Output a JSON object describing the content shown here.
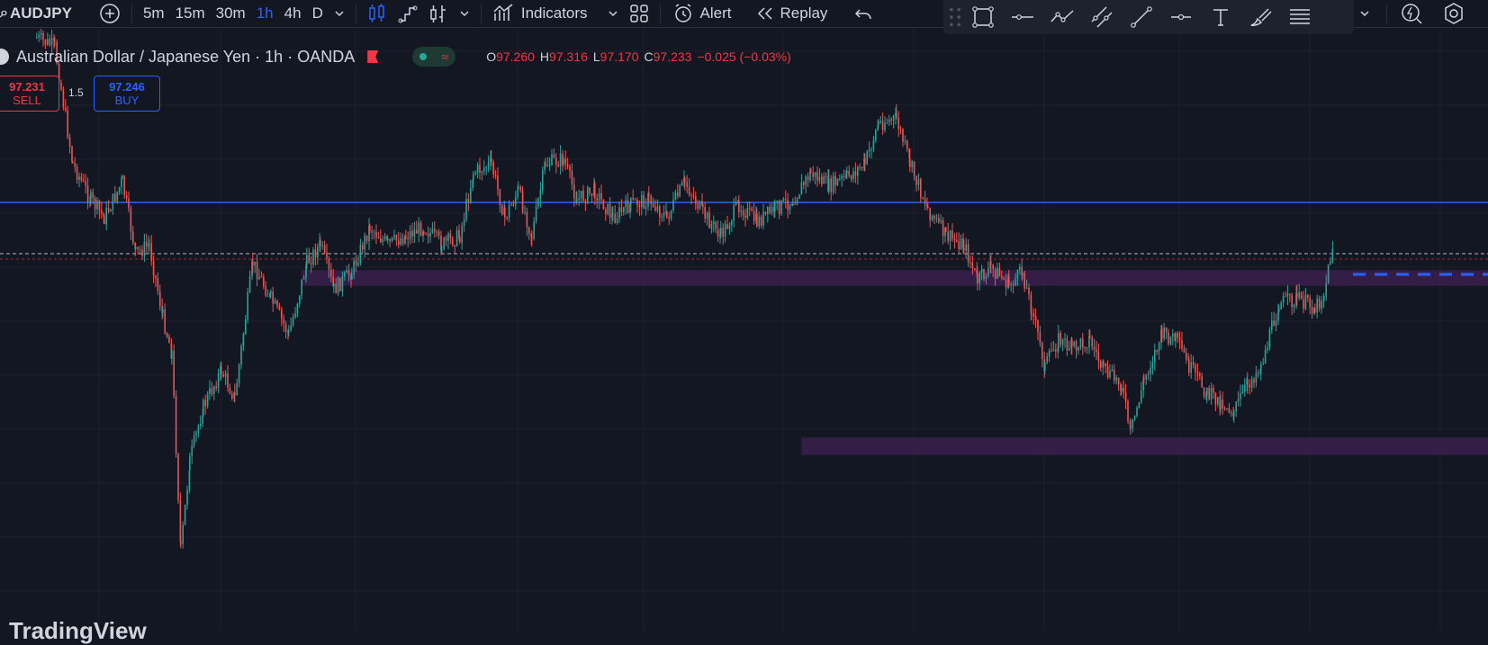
{
  "toolbar": {
    "symbol": "AUDJPY",
    "intervals": [
      "5m",
      "15m",
      "30m",
      "1h",
      "4h",
      "D"
    ],
    "active_interval": "1h",
    "indicators_label": "Indicators",
    "alert_label": "Alert",
    "replay_label": "Replay"
  },
  "legend": {
    "title": "Australian Dollar / Japanese Yen · 1h · OANDA",
    "open_label": "O",
    "open": "97.260",
    "high_label": "H",
    "high": "97.316",
    "low_label": "L",
    "low": "97.170",
    "close_label": "C",
    "close": "97.233",
    "change": "−0.025 (−0.03%)"
  },
  "trade": {
    "sell_price": "97.231",
    "sell_label": "SELL",
    "buy_price": "97.246",
    "buy_label": "BUY",
    "spread": "1.5"
  },
  "watermark": "TradingView",
  "colors": {
    "background": "#131722",
    "up": "#26a69a",
    "down": "#ef5350",
    "line": "#2962ff",
    "zone": "#3b1f4e",
    "accent": "#2962ff"
  },
  "icons": {
    "drawing_tools": [
      "rectangle-icon",
      "horizontal-line-icon",
      "path-icon",
      "parallel-channel-icon",
      "trend-line-icon",
      "horizontal-ray-icon",
      "text-icon",
      "brush-icon",
      "lines-menu-icon"
    ]
  },
  "chart_data": {
    "type": "candlestick",
    "symbol": "AUDJPY",
    "interval": "1h",
    "source": "OANDA",
    "horizontal_line": true,
    "zones": 2,
    "grid": true
  }
}
